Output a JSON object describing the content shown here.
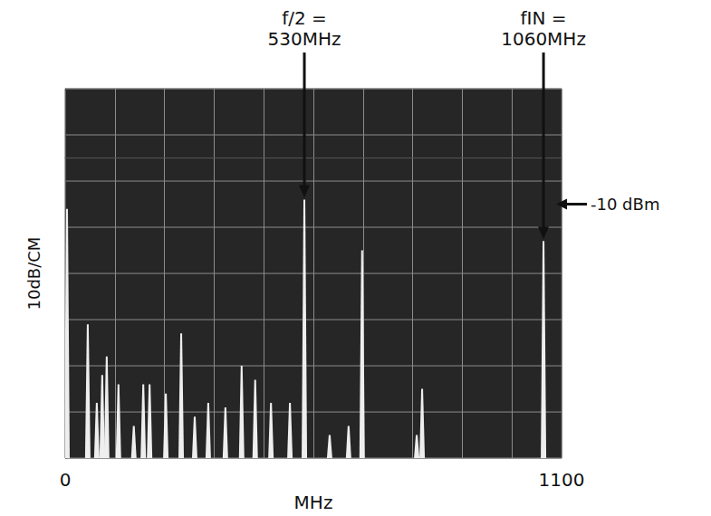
{
  "chart_data": {
    "type": "bar",
    "xlabel": "MHz",
    "ylabel": "10dB/CM",
    "x": [
      4,
      50,
      70,
      82,
      92,
      118,
      152,
      173,
      187,
      223,
      257,
      287,
      317,
      355,
      391,
      421,
      456,
      498,
      530,
      586,
      628,
      658,
      779,
      791,
      1060
    ],
    "values": [
      -11,
      -36,
      -53,
      -47,
      -43,
      -49,
      -58,
      -49,
      -49,
      -51,
      -38,
      -56,
      -53,
      -54,
      -45,
      -48,
      -53,
      -53,
      -9,
      -60,
      -58,
      -20,
      -60,
      -50,
      -18
    ],
    "color": "#eeeeee",
    "xlim": [
      0,
      1100
    ],
    "xticks": [
      0,
      1100
    ],
    "ylim": [
      -65,
      15
    ],
    "yticks": [
      -65,
      -55,
      -45,
      -35,
      -25,
      -15,
      -5,
      5,
      15
    ],
    "grid": true,
    "tick_labels": "x",
    "annotations": [
      {
        "text": [
          "f/2 =",
          "530MHz"
        ],
        "x": 530,
        "y": -9
      },
      {
        "text": [
          "fIN =",
          "1060MHz"
        ],
        "x": 1060,
        "y": -18
      },
      {
        "text": "-10 dBm",
        "y": -10
      }
    ]
  }
}
